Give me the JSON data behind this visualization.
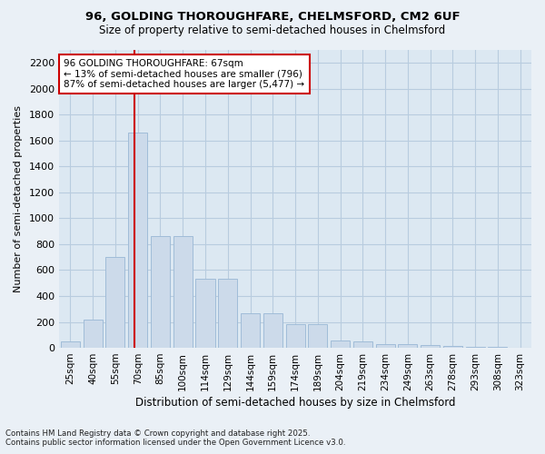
{
  "title_line1": "96, GOLDING THOROUGHFARE, CHELMSFORD, CM2 6UF",
  "title_line2": "Size of property relative to semi-detached houses in Chelmsford",
  "xlabel": "Distribution of semi-detached houses by size in Chelmsford",
  "ylabel": "Number of semi-detached properties",
  "categories": [
    "25sqm",
    "40sqm",
    "55sqm",
    "70sqm",
    "85sqm",
    "100sqm",
    "114sqm",
    "129sqm",
    "144sqm",
    "159sqm",
    "174sqm",
    "189sqm",
    "204sqm",
    "219sqm",
    "234sqm",
    "249sqm",
    "263sqm",
    "278sqm",
    "293sqm",
    "308sqm",
    "323sqm"
  ],
  "values": [
    50,
    220,
    700,
    1660,
    860,
    860,
    530,
    530,
    270,
    270,
    185,
    185,
    60,
    50,
    30,
    30,
    20,
    15,
    8,
    5,
    2
  ],
  "bar_color": "#ccdaea",
  "bar_edge_color": "#a0bcd8",
  "vline_x_index": 2.87,
  "property_sqm": 67,
  "annotation_title": "96 GOLDING THOROUGHFARE: 67sqm",
  "annotation_line1": "← 13% of semi-detached houses are smaller (796)",
  "annotation_line2": "87% of semi-detached houses are larger (5,477) →",
  "vline_color": "#cc0000",
  "annotation_box_facecolor": "#ffffff",
  "annotation_box_edgecolor": "#cc0000",
  "ylim": [
    0,
    2300
  ],
  "yticks": [
    0,
    200,
    400,
    600,
    800,
    1000,
    1200,
    1400,
    1600,
    1800,
    2000,
    2200
  ],
  "grid_color": "#b8ccdf",
  "bg_color": "#dce8f2",
  "fig_bg_color": "#eaf0f6",
  "footer_line1": "Contains HM Land Registry data © Crown copyright and database right 2025.",
  "footer_line2": "Contains public sector information licensed under the Open Government Licence v3.0.",
  "figsize": [
    6.0,
    5.0
  ],
  "dpi": 100
}
